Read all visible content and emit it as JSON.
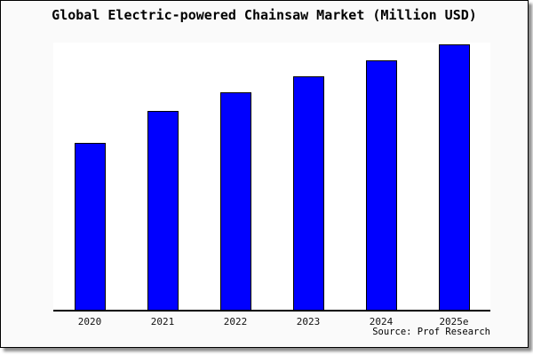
{
  "chart_data": {
    "type": "bar",
    "title": "Global Electric-powered Chainsaw Market (Million USD)",
    "categories": [
      "2020",
      "2021",
      "2022",
      "2023",
      "2024",
      "2025e"
    ],
    "values": [
      63,
      75,
      82,
      88,
      94,
      100
    ],
    "values_unit": "relative bar height, % of tallest bar (no y-axis tick labels shown in chart)",
    "xlabel": "",
    "ylabel": "",
    "ylim": [
      0,
      100.7
    ],
    "grid": false,
    "legend": false,
    "source": "Source: Prof Research",
    "colors": {
      "bar_fill": "#0000FF",
      "bar_border": "#000000",
      "plot_bg": "#FFFFFF",
      "card_bg": "#FAFAFA",
      "axis": "#000000",
      "text": "#000000"
    }
  }
}
